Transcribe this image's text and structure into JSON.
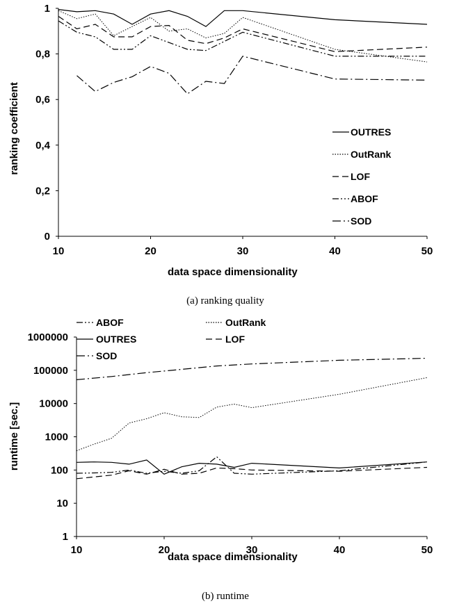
{
  "chart_data": [
    {
      "type": "line",
      "caption": "(a) ranking quality",
      "xlabel": "data space dimensionality",
      "ylabel": "ranking coefficient",
      "xlim": [
        10,
        50
      ],
      "ylim": [
        0,
        1
      ],
      "xticks": [
        "10",
        "20",
        "30",
        "40",
        "50"
      ],
      "yticks": [
        "0",
        "0,2",
        "0,4",
        "0,6",
        "0,8",
        "1"
      ],
      "legend_position": "right",
      "series": [
        {
          "name": "OUTRES",
          "dash": "",
          "x": [
            10,
            12,
            14,
            16,
            18,
            20,
            22,
            24,
            26,
            28,
            30,
            40,
            50
          ],
          "values": [
            0.995,
            0.985,
            0.99,
            0.975,
            0.93,
            0.975,
            0.99,
            0.965,
            0.92,
            0.99,
            0.99,
            0.95,
            0.93
          ]
        },
        {
          "name": "OutRank",
          "dash": "1.5,2",
          "x": [
            10,
            12,
            14,
            16,
            18,
            20,
            22,
            24,
            26,
            28,
            30,
            40,
            50
          ],
          "values": [
            0.99,
            0.955,
            0.975,
            0.88,
            0.92,
            0.96,
            0.9,
            0.91,
            0.87,
            0.89,
            0.96,
            0.82,
            0.765
          ]
        },
        {
          "name": "LOF",
          "dash": "9,5",
          "x": [
            10,
            12,
            14,
            16,
            18,
            20,
            22,
            24,
            26,
            28,
            30,
            40,
            50
          ],
          "values": [
            0.965,
            0.91,
            0.93,
            0.875,
            0.875,
            0.92,
            0.925,
            0.86,
            0.845,
            0.87,
            0.91,
            0.81,
            0.83
          ]
        },
        {
          "name": "ABOF",
          "dash": "9,3,2,3,2,3",
          "x": [
            10,
            12,
            14,
            16,
            18,
            20,
            22,
            24,
            26,
            28,
            30,
            40,
            50
          ],
          "values": [
            0.945,
            0.895,
            0.875,
            0.82,
            0.82,
            0.88,
            0.85,
            0.82,
            0.815,
            0.855,
            0.895,
            0.79,
            0.79
          ]
        },
        {
          "name": "SOD",
          "dash": "12,4,2,4",
          "x": [
            12,
            14,
            16,
            18,
            20,
            22,
            24,
            26,
            28,
            30,
            40,
            50
          ],
          "values": [
            0.705,
            0.635,
            0.675,
            0.7,
            0.745,
            0.715,
            0.625,
            0.68,
            0.67,
            0.79,
            0.69,
            0.685
          ]
        }
      ]
    },
    {
      "type": "line",
      "caption": "(b) runtime",
      "xlabel": "data space dimensionality",
      "ylabel": "runtime [sec.]",
      "xlim": [
        10,
        50
      ],
      "ylim": [
        1,
        1000000
      ],
      "yscale": "log",
      "xticks": [
        "10",
        "20",
        "30",
        "40",
        "50"
      ],
      "yticks": [
        "1",
        "10",
        "100",
        "1000",
        "10000",
        "100000",
        "1000000"
      ],
      "legend_position": "top",
      "series": [
        {
          "name": "ABOF",
          "dash": "9,3,2,3,2,3",
          "x": [
            10,
            12,
            14,
            16,
            18,
            20,
            22,
            24,
            26,
            28,
            30,
            40,
            50
          ],
          "values": [
            80,
            82,
            85,
            100,
            80,
            92,
            80,
            95,
            250,
            80,
            75,
            95,
            175
          ]
        },
        {
          "name": "OutRank",
          "dash": "1.5,2",
          "x": [
            10,
            12,
            14,
            16,
            18,
            20,
            22,
            24,
            26,
            28,
            30,
            40,
            50
          ],
          "values": [
            380,
            600,
            900,
            2600,
            3500,
            5300,
            4000,
            3800,
            7800,
            9600,
            7500,
            19000,
            60000
          ]
        },
        {
          "name": "OUTRES",
          "dash": "",
          "x": [
            10,
            12,
            14,
            16,
            18,
            20,
            22,
            24,
            26,
            28,
            30,
            40,
            50
          ],
          "values": [
            170,
            175,
            170,
            150,
            200,
            75,
            125,
            160,
            150,
            120,
            160,
            115,
            175
          ]
        },
        {
          "name": "LOF",
          "dash": "9,5",
          "x": [
            10,
            12,
            14,
            16,
            18,
            20,
            22,
            24,
            26,
            28,
            30,
            40,
            50
          ],
          "values": [
            55,
            62,
            70,
            95,
            75,
            105,
            75,
            80,
            115,
            110,
            100,
            92,
            120
          ]
        },
        {
          "name": "SOD",
          "dash": "12,4,2,4",
          "x": [
            10,
            14,
            18,
            20,
            26,
            30,
            40,
            50
          ],
          "values": [
            52000,
            65000,
            85000,
            95000,
            135000,
            155000,
            200000,
            230000
          ]
        }
      ]
    }
  ]
}
